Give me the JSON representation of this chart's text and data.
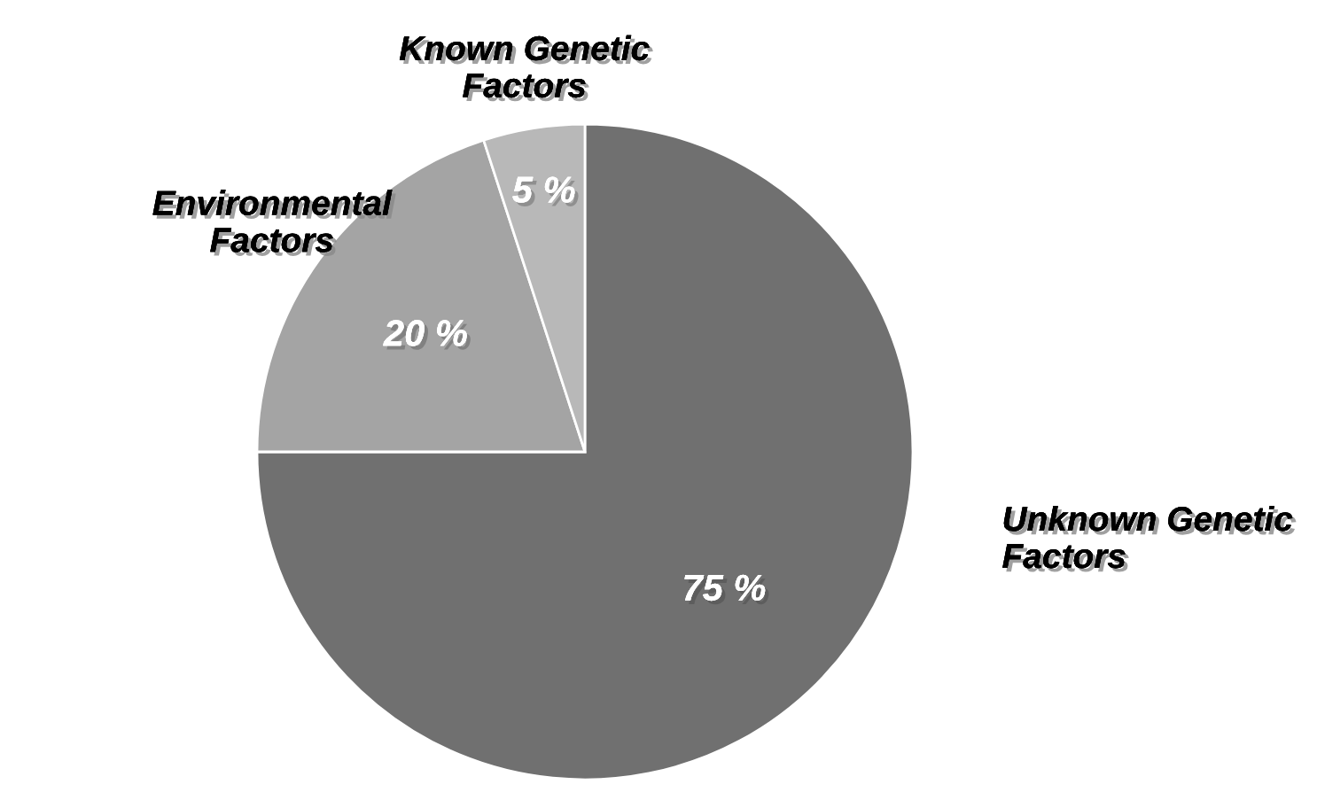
{
  "chart_data": {
    "type": "pie",
    "categories": [
      "Unknown Genetic\nFactors",
      "Environmental\nFactors",
      "Known Genetic\nFactors"
    ],
    "values": [
      75,
      20,
      5
    ],
    "colors": [
      "#707070",
      "#a4a4a4",
      "#b8b8b8"
    ],
    "value_labels": [
      "75 %",
      "20 %",
      "5 %"
    ],
    "legend": false
  }
}
